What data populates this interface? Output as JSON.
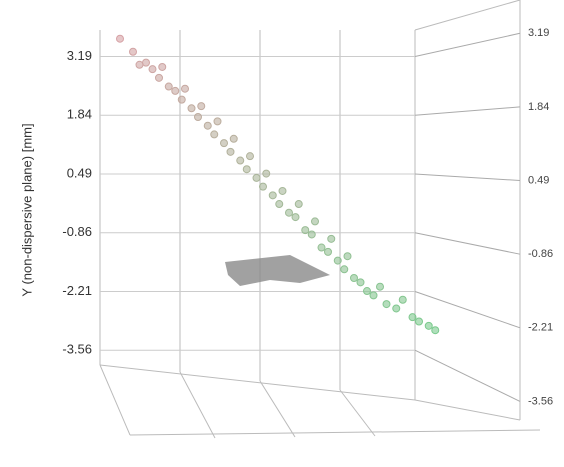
{
  "chart_data": {
    "type": "scatter3d",
    "y_label": "Y (non-dispersive plane) [mm]",
    "ylim": [
      -3.9,
      3.8
    ],
    "yticks": [
      3.19,
      1.84,
      0.49,
      -0.86,
      -2.21,
      -3.56
    ],
    "xlim": [
      0,
      10
    ],
    "colorscale": [
      "#d9a0a6",
      "#6fcf8a"
    ],
    "grid": true,
    "series": [
      {
        "x": [
          0.0,
          0.4,
          0.6,
          0.8,
          1.0,
          1.2,
          1.3,
          1.5,
          1.7,
          1.9,
          2.0,
          2.2,
          2.4,
          2.5,
          2.7,
          2.9,
          3.0,
          3.2,
          3.4,
          3.5,
          3.7,
          3.9,
          4.0,
          4.2,
          4.4,
          4.5,
          4.7,
          4.9,
          5.0,
          5.2,
          5.4,
          5.5,
          5.7,
          5.9,
          6.0,
          6.2,
          6.4,
          6.5,
          6.7,
          6.9,
          7.0,
          7.2,
          7.4,
          7.6,
          7.8,
          8.0,
          8.2,
          8.5,
          8.7,
          9.0,
          9.2,
          9.5,
          9.7
        ],
        "values": [
          3.6,
          3.3,
          3.0,
          3.05,
          2.9,
          2.7,
          2.95,
          2.5,
          2.4,
          2.2,
          2.45,
          2.0,
          1.8,
          2.05,
          1.6,
          1.4,
          1.7,
          1.2,
          1.0,
          1.3,
          0.8,
          0.6,
          0.9,
          0.4,
          0.2,
          0.5,
          0.0,
          -0.2,
          0.1,
          -0.4,
          -0.5,
          -0.2,
          -0.8,
          -0.9,
          -0.6,
          -1.2,
          -1.3,
          -1.0,
          -1.5,
          -1.7,
          -1.4,
          -1.9,
          -2.0,
          -2.2,
          -2.3,
          -2.1,
          -2.5,
          -2.6,
          -2.4,
          -2.8,
          -2.9,
          -3.0,
          -3.1
        ]
      }
    ]
  }
}
